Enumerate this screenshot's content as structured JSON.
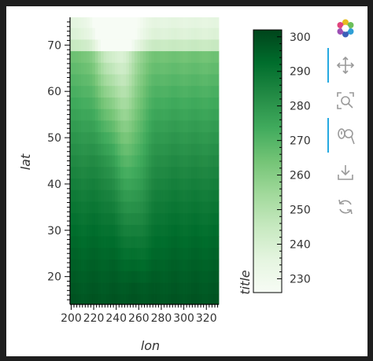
{
  "chart_data": {
    "type": "heatmap",
    "title": "",
    "xlabel": "lon",
    "ylabel": "lat",
    "xlim": [
      199,
      331
    ],
    "ylim": [
      14,
      76
    ],
    "x_ticks": [
      200,
      220,
      240,
      260,
      280,
      300,
      320
    ],
    "y_ticks": [
      20,
      30,
      40,
      50,
      60,
      70
    ],
    "colormap": "Greens",
    "colorbar": {
      "label": "title",
      "range": [
        226,
        302
      ],
      "ticks": [
        230,
        240,
        250,
        260,
        270,
        280,
        290,
        300
      ],
      "low_color": "#f7fcf5",
      "high_color": "#00441b"
    },
    "grid": {
      "lon_start": 200,
      "lon_step": 2.5,
      "n_lon": 53,
      "lat_start": 15,
      "lat_step": 2.5,
      "n_lat": 25,
      "description_values": "air temperature (K): warm in south, cold tongue from ~255E north, coldest near 70N"
    }
  },
  "toolbar": {
    "items": [
      "bokeh-logo",
      "pan-icon",
      "box-zoom-icon",
      "wheel-zoom-icon",
      "save-icon",
      "reset-icon"
    ]
  }
}
